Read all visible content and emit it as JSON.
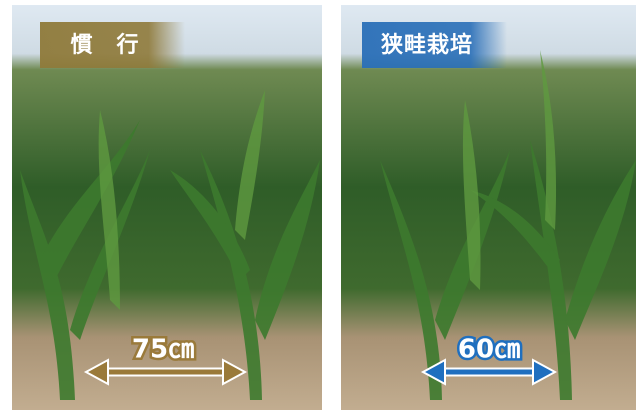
{
  "panels": [
    {
      "label": "慣　行",
      "measure": "75㎝"
    },
    {
      "label": "狭畦栽培",
      "measure": "60㎝"
    }
  ]
}
